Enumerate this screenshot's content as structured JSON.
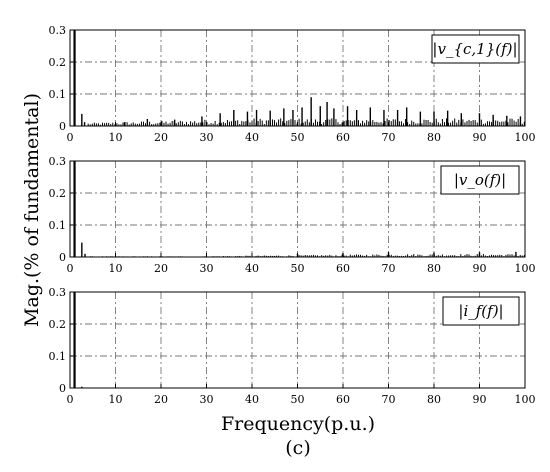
{
  "figure": {
    "ylabel": "Mag.(% of fundamental)",
    "xlabel": "Frequency(p.u.)",
    "caption": "(c)"
  },
  "chart_data": [
    {
      "type": "bar",
      "legend": "|v_{c,1}(f)|",
      "xlim": [
        0,
        100
      ],
      "ylim": [
        0,
        0.3
      ],
      "xticks": [
        0,
        10,
        20,
        30,
        40,
        50,
        60,
        70,
        80,
        90,
        100
      ],
      "yticks": [
        0,
        0.1,
        0.2,
        0.3
      ],
      "grid": true,
      "legend_position": "top-right",
      "spikes": [
        [
          1,
          0.3
        ],
        [
          2.6,
          0.038
        ],
        [
          3.2,
          0.012
        ],
        [
          12,
          0.012
        ],
        [
          17,
          0.022
        ],
        [
          23,
          0.02
        ],
        [
          29,
          0.03
        ],
        [
          33,
          0.04
        ],
        [
          36,
          0.05
        ],
        [
          39,
          0.045
        ],
        [
          41,
          0.05
        ],
        [
          44,
          0.048
        ],
        [
          47,
          0.055
        ],
        [
          49,
          0.05
        ],
        [
          51,
          0.058
        ],
        [
          53,
          0.09
        ],
        [
          55,
          0.062
        ],
        [
          56.5,
          0.075
        ],
        [
          58,
          0.055
        ],
        [
          61,
          0.062
        ],
        [
          63,
          0.05
        ],
        [
          66,
          0.058
        ],
        [
          69,
          0.05
        ],
        [
          72,
          0.05
        ],
        [
          74,
          0.058
        ],
        [
          77,
          0.045
        ],
        [
          80,
          0.045
        ],
        [
          83,
          0.048
        ],
        [
          86,
          0.04
        ],
        [
          90,
          0.04
        ],
        [
          93,
          0.035
        ],
        [
          96,
          0.032
        ],
        [
          99,
          0.03
        ]
      ],
      "noise_floor": 0.02
    },
    {
      "type": "bar",
      "legend": "|v_o(f)|",
      "xlim": [
        0,
        100
      ],
      "ylim": [
        0,
        0.3
      ],
      "xticks": [
        0,
        10,
        20,
        30,
        40,
        50,
        60,
        70,
        80,
        90,
        100
      ],
      "yticks": [
        0,
        0.1,
        0.2,
        0.3
      ],
      "grid": true,
      "legend_position": "top-right",
      "spikes": [
        [
          1,
          0.3
        ],
        [
          2.6,
          0.045
        ],
        [
          3.3,
          0.01
        ],
        [
          50,
          0.01
        ],
        [
          60,
          0.012
        ],
        [
          70,
          0.015
        ],
        [
          80,
          0.014
        ],
        [
          90,
          0.015
        ],
        [
          98,
          0.016
        ]
      ],
      "noise_floor": 0.008
    },
    {
      "type": "bar",
      "legend": "|i_f(f)|",
      "xlim": [
        0,
        100
      ],
      "ylim": [
        0,
        0.3
      ],
      "xticks": [
        0,
        10,
        20,
        30,
        40,
        50,
        60,
        70,
        80,
        90,
        100
      ],
      "yticks": [
        0,
        0.1,
        0.2,
        0.3
      ],
      "grid": true,
      "legend_position": "top-right",
      "spikes": [
        [
          1,
          0.3
        ],
        [
          2.6,
          0.004
        ]
      ],
      "noise_floor": 0.0
    }
  ]
}
